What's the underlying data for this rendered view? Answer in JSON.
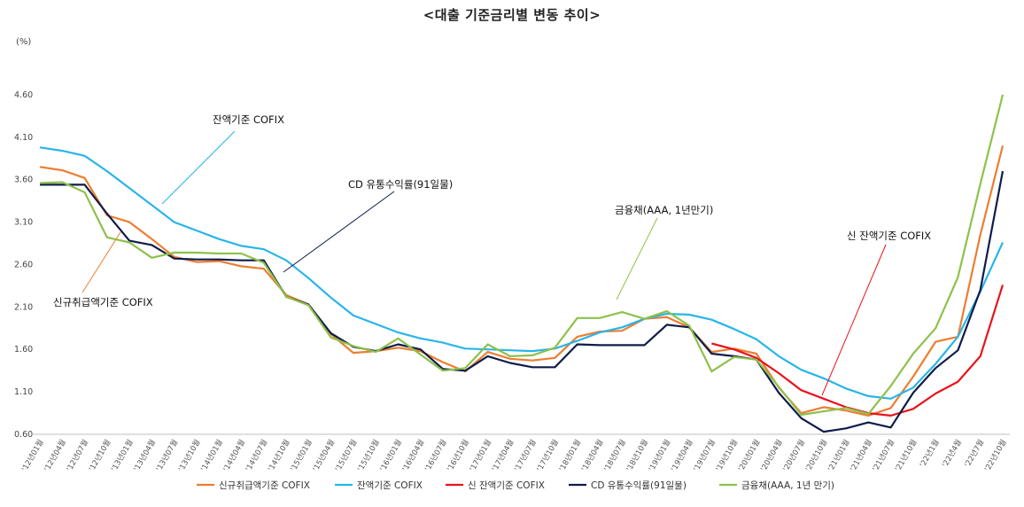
{
  "chart_data": {
    "type": "line",
    "title": "<대출 기준금리별 변동 추이>",
    "unit_label": "(%)",
    "ylim": [
      0.6,
      5.1
    ],
    "yticks": [
      "0.60",
      "1.10",
      "1.60",
      "2.10",
      "2.60",
      "3.10",
      "3.60",
      "4.10",
      "4.60"
    ],
    "x": [
      "'12년01월",
      "'12년04월",
      "'12년07월",
      "'12년10월",
      "'13년01월",
      "'13년04월",
      "'13년07월",
      "'13년10월",
      "'14년01월",
      "'14년04월",
      "'14년07월",
      "'14년10월",
      "'15년01월",
      "'15년04월",
      "'15년07월",
      "'15년10월",
      "'16년01월",
      "'16년04월",
      "'16년07월",
      "'16년10월",
      "'17년01월",
      "'17년04월",
      "'17년07월",
      "'17년10월",
      "'18년01월",
      "'18년04월",
      "'18년07월",
      "'18년10월",
      "'19년01월",
      "'19년04월",
      "'19년07월",
      "'19년10월",
      "'20년01월",
      "'20년04월",
      "'20년07월",
      "'20년10월",
      "'21년01월",
      "'21년04월",
      "'21년07월",
      "'21년10월",
      "'22년1월",
      "'22년4월",
      "'22년7월",
      "'22년10월"
    ],
    "series": [
      {
        "name": "신규취급액기준 COFIX",
        "color": "#ED7D31",
        "values": [
          3.75,
          3.71,
          3.62,
          3.18,
          3.1,
          2.9,
          2.69,
          2.63,
          2.64,
          2.58,
          2.55,
          2.24,
          2.13,
          1.78,
          1.56,
          1.58,
          1.62,
          1.58,
          1.45,
          1.34,
          1.57,
          1.49,
          1.47,
          1.5,
          1.75,
          1.81,
          1.82,
          1.96,
          1.98,
          1.86,
          1.57,
          1.61,
          1.55,
          1.15,
          0.85,
          0.92,
          0.88,
          0.82,
          0.91,
          1.28,
          1.69,
          1.75,
          2.95,
          4.0
        ]
      },
      {
        "name": "잔액기준 COFIX",
        "color": "#29B5E8",
        "values": [
          3.98,
          3.94,
          3.88,
          3.7,
          3.5,
          3.3,
          3.1,
          3.0,
          2.9,
          2.82,
          2.78,
          2.65,
          2.44,
          2.21,
          2.0,
          1.9,
          1.8,
          1.73,
          1.68,
          1.61,
          1.6,
          1.59,
          1.58,
          1.61,
          1.7,
          1.8,
          1.86,
          1.96,
          2.02,
          2.01,
          1.95,
          1.84,
          1.72,
          1.52,
          1.36,
          1.26,
          1.14,
          1.05,
          1.02,
          1.15,
          1.43,
          1.75,
          2.28,
          2.86
        ]
      },
      {
        "name": "신 잔액기준 COFIX",
        "color": "#E8131D",
        "values": [
          null,
          null,
          null,
          null,
          null,
          null,
          null,
          null,
          null,
          null,
          null,
          null,
          null,
          null,
          null,
          null,
          null,
          null,
          null,
          null,
          null,
          null,
          null,
          null,
          null,
          null,
          null,
          null,
          null,
          null,
          1.67,
          1.6,
          1.5,
          1.32,
          1.12,
          1.02,
          0.92,
          0.85,
          0.82,
          0.9,
          1.08,
          1.22,
          1.52,
          2.36
        ]
      },
      {
        "name": "CD 유통수익률(91일물)",
        "color": "#0F1C4A",
        "values": [
          3.54,
          3.54,
          3.54,
          3.2,
          2.88,
          2.83,
          2.67,
          2.66,
          2.66,
          2.65,
          2.65,
          2.22,
          2.13,
          1.79,
          1.63,
          1.58,
          1.66,
          1.6,
          1.37,
          1.35,
          1.52,
          1.44,
          1.39,
          1.39,
          1.66,
          1.65,
          1.65,
          1.65,
          1.89,
          1.86,
          1.55,
          1.52,
          1.48,
          1.09,
          0.79,
          0.63,
          0.67,
          0.74,
          0.68,
          1.09,
          1.38,
          1.59,
          2.3,
          3.7
        ]
      },
      {
        "name": "금융채(AAA, 1년 만기)",
        "color": "#8DC14B",
        "values": [
          3.56,
          3.57,
          3.45,
          2.92,
          2.86,
          2.68,
          2.74,
          2.74,
          2.73,
          2.73,
          2.62,
          2.22,
          2.12,
          1.74,
          1.64,
          1.57,
          1.73,
          1.54,
          1.35,
          1.38,
          1.66,
          1.52,
          1.53,
          1.62,
          1.97,
          1.97,
          2.04,
          1.96,
          2.05,
          1.88,
          1.34,
          1.51,
          1.48,
          1.16,
          0.83,
          0.87,
          0.91,
          0.84,
          1.17,
          1.55,
          1.85,
          2.45,
          3.55,
          4.6
        ]
      }
    ],
    "annotations": [
      {
        "text": "잔액기준 COFIX"
      },
      {
        "text": "CD 유통수익률(91일물)"
      },
      {
        "text": "금융채(AAA, 1년만기)"
      },
      {
        "text": "신 잔액기준 COFIX"
      },
      {
        "text": "신규취급액기준 COFIX"
      }
    ],
    "legend_position": "bottom",
    "grid": false
  }
}
